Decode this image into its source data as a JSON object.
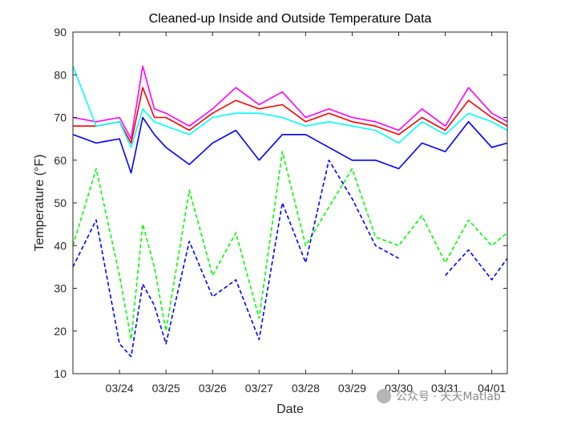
{
  "chart_data": {
    "type": "line",
    "title": "Cleaned-up Inside and Outside Temperature Data",
    "xlabel": "Date",
    "ylabel": "Temperature (°F)",
    "ylim": [
      10,
      90
    ],
    "yticks": [
      10,
      20,
      30,
      40,
      50,
      60,
      70,
      80,
      90
    ],
    "xlim": [
      "03/23 00:00",
      "04/01 08:00"
    ],
    "x_ticks": [
      "03/24",
      "03/25",
      "03/26",
      "03/27",
      "03/28",
      "03/29",
      "03/30",
      "03/31",
      "04/01"
    ],
    "grid": false,
    "x": [
      "03/23 00:00",
      "03/23 12:00",
      "03/24 00:00",
      "03/24 06:00",
      "03/24 12:00",
      "03/24 18:00",
      "03/25 00:00",
      "03/25 12:00",
      "03/26 00:00",
      "03/26 12:00",
      "03/27 00:00",
      "03/27 12:00",
      "03/28 00:00",
      "03/28 12:00",
      "03/29 00:00",
      "03/29 12:00",
      "03/30 00:00",
      "03/30 12:00",
      "03/31 00:00",
      "03/31 12:00",
      "04/01 00:00",
      "04/01 08:00"
    ],
    "series": [
      {
        "color": "#ff00ff",
        "style": "solid",
        "values": [
          70,
          69,
          70,
          65,
          82,
          72,
          71,
          68,
          72,
          77,
          73,
          76,
          70,
          72,
          70,
          69,
          67,
          72,
          68,
          77,
          71,
          69
        ]
      },
      {
        "color": "#ff0000",
        "style": "solid",
        "values": [
          68,
          68,
          69,
          64,
          77,
          70,
          70,
          67,
          71,
          74,
          72,
          73,
          69,
          71,
          69,
          68,
          66,
          70,
          67,
          74,
          70,
          68
        ]
      },
      {
        "color": "#00ffff",
        "style": "solid",
        "values": [
          82,
          68,
          69,
          63,
          72,
          69,
          68,
          66,
          70,
          71,
          71,
          70,
          68,
          69,
          68,
          67,
          64,
          69,
          66,
          71,
          69,
          67
        ]
      },
      {
        "color": "#0000ff",
        "style": "solid",
        "values": [
          66,
          64,
          65,
          57,
          70,
          66,
          63,
          59,
          64,
          67,
          60,
          66,
          66,
          63,
          60,
          60,
          58,
          64,
          62,
          69,
          63,
          64
        ]
      },
      {
        "color": "#00ff00",
        "style": "dashed",
        "values": [
          40,
          58,
          33,
          18,
          45,
          35,
          20,
          53,
          33,
          43,
          23,
          62,
          40,
          49,
          58,
          42,
          40,
          47,
          36,
          46,
          40,
          43
        ]
      },
      {
        "color": "#0000ff",
        "style": "dashed",
        "values": [
          35,
          46,
          17,
          14,
          31,
          26,
          17,
          41,
          28,
          32,
          18,
          50,
          36,
          60,
          51,
          40,
          37,
          null,
          33,
          39,
          32,
          37
        ]
      }
    ]
  },
  "watermark": "公众号 · 天天Matlab"
}
